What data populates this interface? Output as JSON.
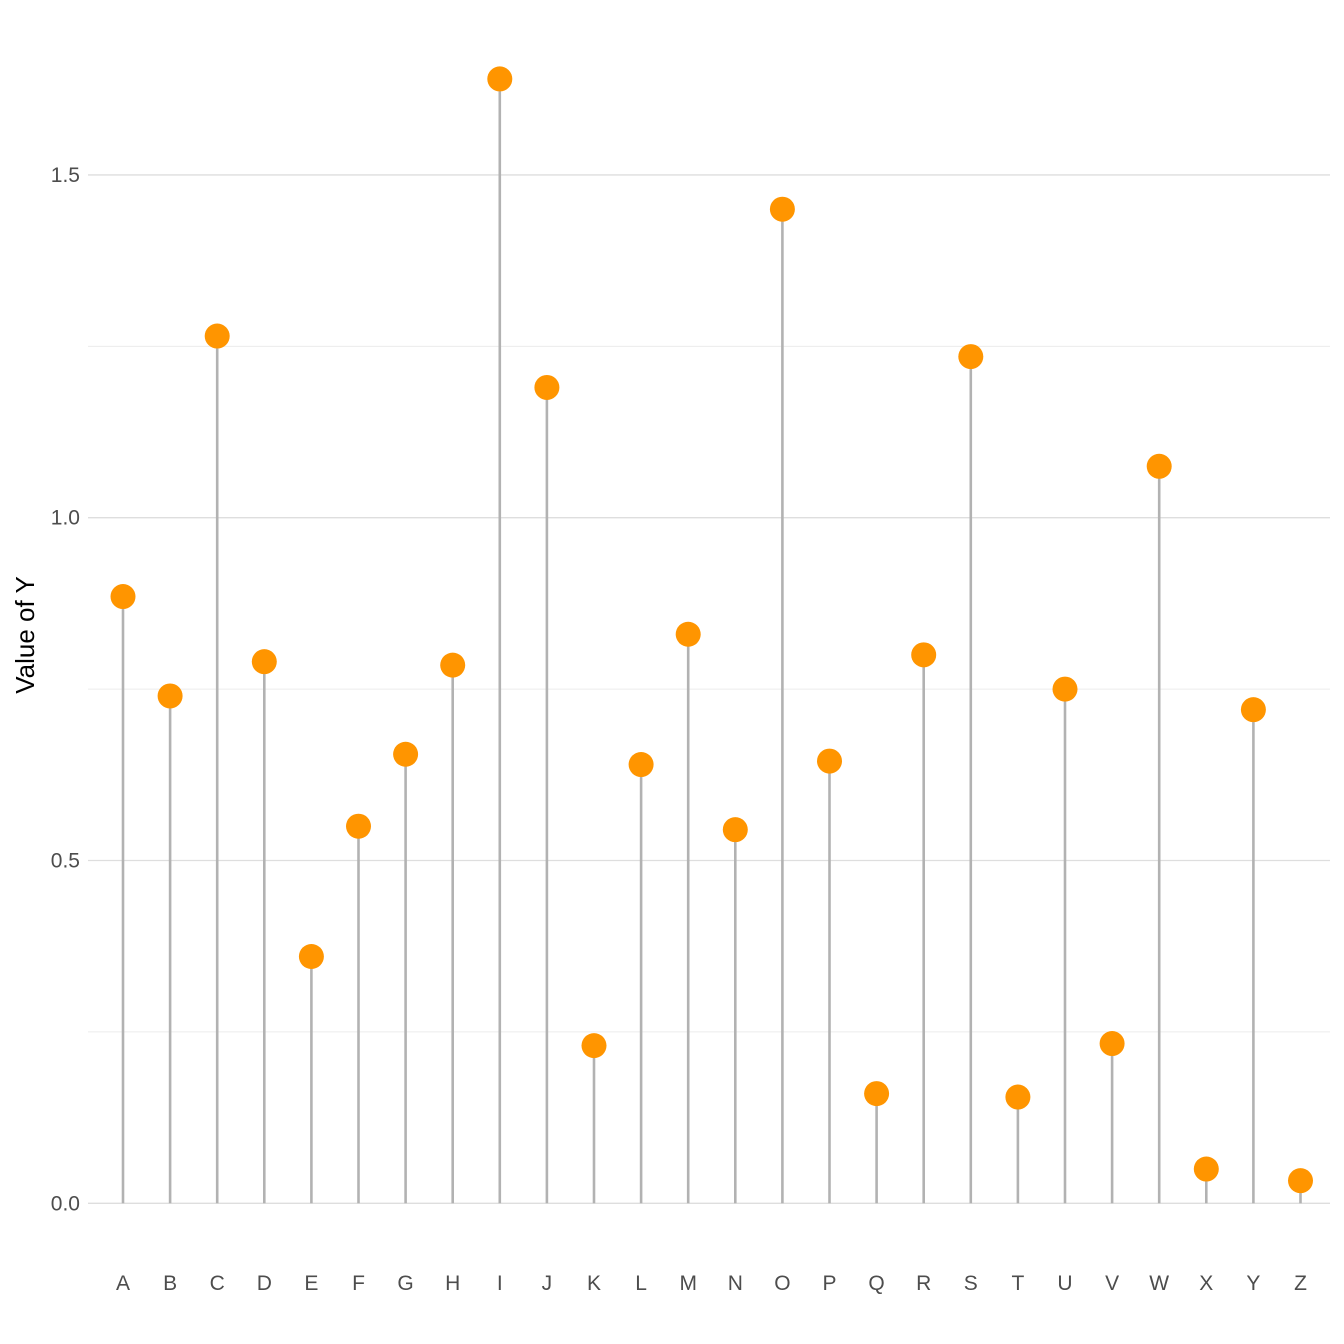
{
  "chart_data": {
    "type": "lollipop",
    "title": "",
    "xlabel": "",
    "ylabel": "Value of Y",
    "categories": [
      "A",
      "B",
      "C",
      "D",
      "E",
      "F",
      "G",
      "H",
      "I",
      "J",
      "K",
      "L",
      "M",
      "N",
      "O",
      "P",
      "Q",
      "R",
      "S",
      "T",
      "U",
      "V",
      "W",
      "X",
      "Y",
      "Z"
    ],
    "values": [
      0.885,
      0.74,
      1.265,
      0.79,
      0.36,
      0.55,
      0.655,
      0.785,
      1.64,
      1.19,
      0.23,
      0.64,
      0.83,
      0.545,
      1.45,
      0.645,
      0.16,
      0.8,
      1.235,
      0.155,
      0.75,
      0.233,
      1.075,
      0.05,
      0.72,
      0.033
    ],
    "ylim": [
      -0.0468,
      1.7
    ],
    "yticks": [
      0.0,
      0.5,
      1.0,
      1.5
    ],
    "ytick_labels": [
      "0.0",
      "0.5",
      "1.0",
      "1.5"
    ],
    "grid": true,
    "legend": "none",
    "colors": {
      "point": "#FF9500",
      "stem": "#b2b2b2"
    }
  }
}
